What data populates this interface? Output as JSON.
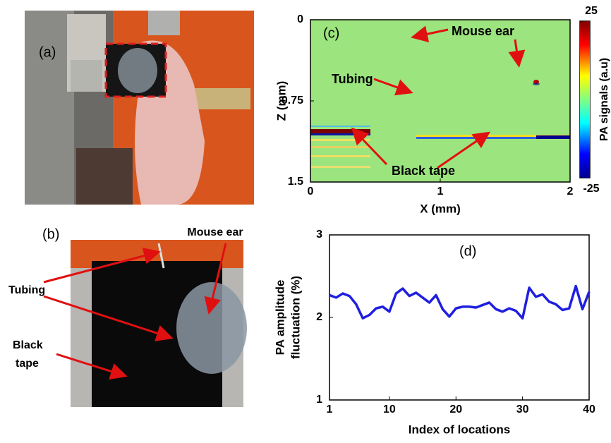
{
  "photos": [
    {
      "label": "(a)"
    },
    {
      "label": "(b)",
      "annotations": [
        "Mouse ear",
        "Tubing",
        "Black",
        "tape"
      ]
    }
  ],
  "chart_data": [
    {
      "type": "image",
      "label": "(c)",
      "xlabel": "X (mm)",
      "ylabel": "Z (mm)",
      "xlim": [
        0,
        2
      ],
      "xticks": [
        0,
        1,
        2
      ],
      "ylim": [
        1.5,
        0
      ],
      "yticks": [
        0,
        0.75,
        1.5
      ],
      "annotations": [
        "Mouse ear",
        "Tubing",
        "Black tape"
      ],
      "colorbar": {
        "label": "PA signals (a.u)",
        "lim": [
          -25,
          25
        ],
        "ticks": [
          -25,
          25
        ]
      }
    },
    {
      "type": "line",
      "label": "(d)",
      "xlabel": "Index of locations",
      "ylabel": [
        "PA amplitude",
        "fluctuation (%)"
      ],
      "x": [
        1,
        2,
        3,
        4,
        5,
        6,
        7,
        8,
        9,
        10,
        11,
        12,
        13,
        14,
        15,
        16,
        17,
        18,
        19,
        20,
        21,
        22,
        23,
        24,
        25,
        26,
        27,
        28,
        29,
        30,
        31,
        32,
        33,
        34,
        35,
        36,
        37,
        38,
        39,
        40
      ],
      "values": [
        2.27,
        2.24,
        2.29,
        2.26,
        2.16,
        1.99,
        2.03,
        2.11,
        2.13,
        2.07,
        2.29,
        2.35,
        2.26,
        2.3,
        2.24,
        2.18,
        2.27,
        2.1,
        2.01,
        2.11,
        2.13,
        2.13,
        2.12,
        2.15,
        2.18,
        2.1,
        2.07,
        2.11,
        2.08,
        1.99,
        2.36,
        2.25,
        2.28,
        2.19,
        2.16,
        2.09,
        2.11,
        2.38,
        2.1,
        2.31
      ],
      "color": "#1f1fe0",
      "xlim": [
        1,
        40
      ],
      "xticks": [
        1,
        10,
        20,
        30,
        40
      ],
      "ylim": [
        1,
        3
      ],
      "yticks": [
        1,
        2,
        3
      ]
    }
  ]
}
